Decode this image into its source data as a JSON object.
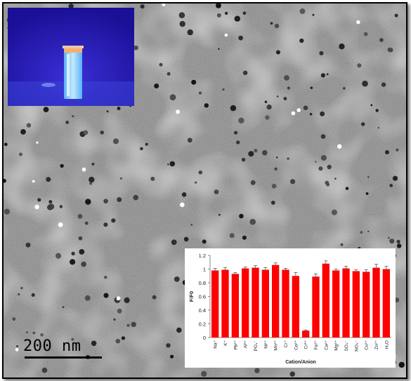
{
  "scale_bar": {
    "label": "200 nm"
  },
  "inset_photo": {
    "description_icon": "cuvette-icon",
    "background_color": "#1c12a8",
    "glow_color": "#8fe3ff"
  },
  "chart_data": {
    "type": "bar",
    "xlabel": "Cation/Anion",
    "ylabel": "F/F0",
    "ylim": [
      0,
      1.2
    ],
    "yticks": [
      "0",
      "0.2",
      "0.4",
      "0.6",
      "0.8",
      "1",
      "1.2"
    ],
    "bar_color": "#ff0000",
    "categories": [
      "Na⁺",
      "K⁺",
      "Pb²⁺",
      "Al³⁺",
      "PO₄⁻",
      "Ni²⁺",
      "Mn²⁺",
      "Cr⁺",
      "Co²⁺",
      "Cr³⁺",
      "Fe³⁺",
      "Ca²⁺",
      "Mg²⁺",
      "SO₄⁻",
      "NO₃⁻",
      "Cu²⁺",
      "Zn²⁺",
      "H₂O"
    ],
    "values": [
      0.98,
      0.99,
      0.93,
      1.01,
      1.02,
      0.99,
      1.06,
      0.99,
      0.9,
      0.1,
      0.89,
      1.08,
      0.98,
      1.01,
      0.97,
      0.96,
      1.02,
      1.0
    ],
    "errors": [
      0.03,
      0.03,
      0.02,
      0.02,
      0.03,
      0.03,
      0.03,
      0.02,
      0.05,
      0.01,
      0.04,
      0.04,
      0.02,
      0.03,
      0.02,
      0.03,
      0.05,
      0.04
    ]
  }
}
